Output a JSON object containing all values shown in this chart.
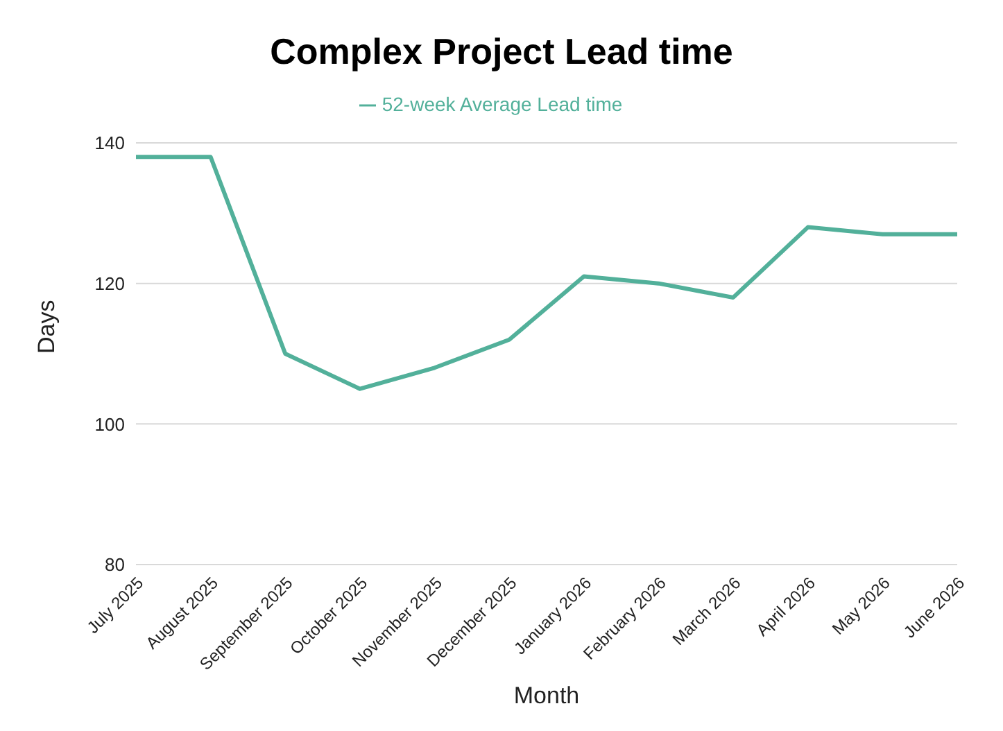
{
  "chart_data": {
    "type": "line",
    "title": "Complex Project Lead time",
    "xlabel": "Month",
    "ylabel": "Days",
    "categories": [
      "July 2025",
      "August 2025",
      "September 2025",
      "October 2025",
      "November 2025",
      "December 2025",
      "January 2026",
      "February 2026",
      "March 2026",
      "April 2026",
      "May 2026",
      "June 2026"
    ],
    "series": [
      {
        "name": "52-week Average Lead time",
        "color": "#52b09a",
        "values": [
          138,
          138,
          110,
          105,
          108,
          112,
          121,
          120,
          118,
          128,
          127,
          127
        ]
      }
    ],
    "ylim": [
      80,
      140
    ],
    "yticks": [
      80,
      100,
      120,
      140
    ],
    "grid": "y",
    "legend": "top",
    "marker": "none",
    "line_style": "solid"
  }
}
